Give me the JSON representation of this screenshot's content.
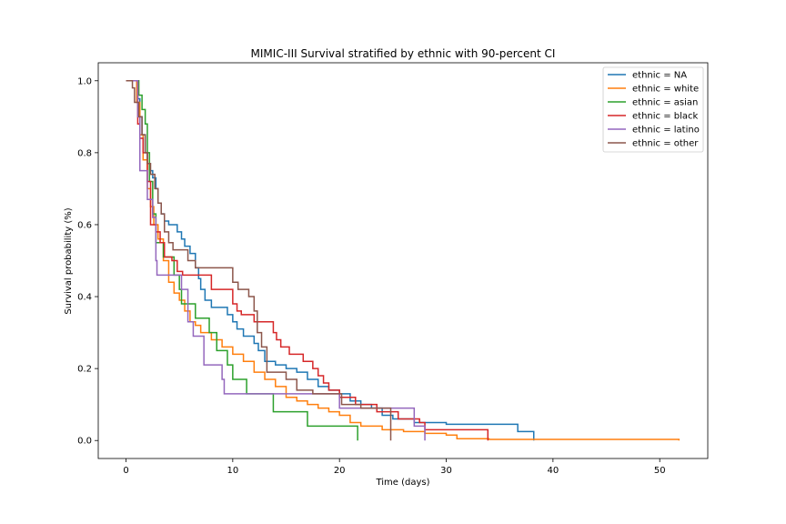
{
  "chart_data": {
    "type": "line",
    "title": "MIMIC-III Survival stratified by ethnic with 90-percent CI",
    "xlabel": "Time (days)",
    "ylabel": "Survival probability (%)",
    "xlim": [
      -2.6,
      54.5
    ],
    "ylim": [
      -0.05,
      1.05
    ],
    "xticks": [
      0,
      10,
      20,
      30,
      40,
      50
    ],
    "yticks": [
      0.0,
      0.2,
      0.4,
      0.6,
      0.8,
      1.0
    ],
    "xtick_labels": [
      "0",
      "10",
      "20",
      "30",
      "40",
      "50"
    ],
    "ytick_labels": [
      "0.0",
      "0.2",
      "0.4",
      "0.6",
      "0.8",
      "1.0"
    ],
    "grid": false,
    "legend_position": "top-right",
    "series": [
      {
        "name": "ethnic = NA",
        "color": "#1f77b4",
        "points": [
          [
            0,
            1.0
          ],
          [
            1.0,
            1.0
          ],
          [
            1.1,
            0.95
          ],
          [
            1.3,
            0.9
          ],
          [
            1.5,
            0.85
          ],
          [
            1.8,
            0.8
          ],
          [
            2.0,
            0.77
          ],
          [
            2.2,
            0.75
          ],
          [
            2.5,
            0.73
          ],
          [
            2.8,
            0.7
          ],
          [
            3.0,
            0.66
          ],
          [
            3.3,
            0.63
          ],
          [
            3.6,
            0.61
          ],
          [
            4.0,
            0.6
          ],
          [
            4.8,
            0.58
          ],
          [
            5.2,
            0.56
          ],
          [
            5.5,
            0.54
          ],
          [
            6.0,
            0.52
          ],
          [
            6.5,
            0.48
          ],
          [
            6.8,
            0.45
          ],
          [
            7.0,
            0.42
          ],
          [
            7.4,
            0.39
          ],
          [
            8.0,
            0.37
          ],
          [
            9.5,
            0.35
          ],
          [
            10.0,
            0.33
          ],
          [
            10.4,
            0.31
          ],
          [
            11.0,
            0.29
          ],
          [
            12.0,
            0.27
          ],
          [
            12.4,
            0.25
          ],
          [
            13.0,
            0.22
          ],
          [
            14.0,
            0.21
          ],
          [
            15.0,
            0.2
          ],
          [
            16.0,
            0.19
          ],
          [
            17.0,
            0.17
          ],
          [
            18.0,
            0.15
          ],
          [
            19.0,
            0.14
          ],
          [
            20.0,
            0.13
          ],
          [
            21.0,
            0.11
          ],
          [
            22.0,
            0.1
          ],
          [
            23.0,
            0.09
          ],
          [
            24.0,
            0.07
          ],
          [
            25.0,
            0.06
          ],
          [
            27.0,
            0.05
          ],
          [
            30.0,
            0.045
          ],
          [
            36.7,
            0.045
          ],
          [
            36.7,
            0.025
          ],
          [
            38.2,
            0.025
          ],
          [
            38.2,
            0.0
          ]
        ]
      },
      {
        "name": "ethnic = white",
        "color": "#ff7f0e",
        "points": [
          [
            0,
            1.0
          ],
          [
            0.8,
            1.0
          ],
          [
            1.0,
            0.94
          ],
          [
            1.3,
            0.85
          ],
          [
            1.6,
            0.78
          ],
          [
            2.0,
            0.7
          ],
          [
            2.3,
            0.65
          ],
          [
            2.6,
            0.6
          ],
          [
            3.0,
            0.56
          ],
          [
            3.5,
            0.5
          ],
          [
            4.0,
            0.44
          ],
          [
            4.5,
            0.41
          ],
          [
            5.0,
            0.39
          ],
          [
            5.5,
            0.36
          ],
          [
            6.0,
            0.33
          ],
          [
            6.5,
            0.32
          ],
          [
            7.0,
            0.3
          ],
          [
            8.0,
            0.28
          ],
          [
            9.0,
            0.26
          ],
          [
            10.0,
            0.24
          ],
          [
            11.0,
            0.22
          ],
          [
            12.0,
            0.19
          ],
          [
            13.0,
            0.17
          ],
          [
            14.0,
            0.15
          ],
          [
            15.0,
            0.12
          ],
          [
            16.0,
            0.11
          ],
          [
            17.0,
            0.1
          ],
          [
            18.0,
            0.09
          ],
          [
            19.0,
            0.08
          ],
          [
            20.0,
            0.07
          ],
          [
            21.0,
            0.05
          ],
          [
            22.0,
            0.04
          ],
          [
            24.0,
            0.03
          ],
          [
            26.0,
            0.025
          ],
          [
            28.0,
            0.02
          ],
          [
            30.0,
            0.015
          ],
          [
            31.0,
            0.005
          ],
          [
            34.0,
            0.003
          ],
          [
            51.8,
            0.003
          ],
          [
            51.8,
            0.0
          ]
        ]
      },
      {
        "name": "ethnic = asian",
        "color": "#2ca02c",
        "points": [
          [
            0,
            1.0
          ],
          [
            1.0,
            1.0
          ],
          [
            1.2,
            0.96
          ],
          [
            1.5,
            0.92
          ],
          [
            1.8,
            0.88
          ],
          [
            2.0,
            0.8
          ],
          [
            2.2,
            0.72
          ],
          [
            2.5,
            0.63
          ],
          [
            2.8,
            0.55
          ],
          [
            3.2,
            0.55
          ],
          [
            3.5,
            0.51
          ],
          [
            4.0,
            0.51
          ],
          [
            4.5,
            0.46
          ],
          [
            5.0,
            0.42
          ],
          [
            5.2,
            0.38
          ],
          [
            6.5,
            0.34
          ],
          [
            7.8,
            0.3
          ],
          [
            8.5,
            0.25
          ],
          [
            9.5,
            0.21
          ],
          [
            10.0,
            0.17
          ],
          [
            11.3,
            0.13
          ],
          [
            13.5,
            0.13
          ],
          [
            13.8,
            0.08
          ],
          [
            17.0,
            0.08
          ],
          [
            17.0,
            0.04
          ],
          [
            21.7,
            0.04
          ],
          [
            21.7,
            0.0
          ]
        ]
      },
      {
        "name": "ethnic = black",
        "color": "#d62728",
        "points": [
          [
            0,
            1.0
          ],
          [
            0.9,
            1.0
          ],
          [
            1.1,
            0.88
          ],
          [
            1.3,
            0.84
          ],
          [
            1.6,
            0.8
          ],
          [
            2.0,
            0.72
          ],
          [
            2.3,
            0.6
          ],
          [
            2.8,
            0.58
          ],
          [
            3.2,
            0.55
          ],
          [
            3.6,
            0.51
          ],
          [
            4.3,
            0.5
          ],
          [
            4.8,
            0.47
          ],
          [
            5.3,
            0.46
          ],
          [
            7.0,
            0.46
          ],
          [
            8.0,
            0.42
          ],
          [
            10.0,
            0.38
          ],
          [
            10.4,
            0.36
          ],
          [
            10.8,
            0.35
          ],
          [
            12.0,
            0.33
          ],
          [
            13.8,
            0.3
          ],
          [
            14.1,
            0.28
          ],
          [
            14.5,
            0.26
          ],
          [
            15.3,
            0.24
          ],
          [
            16.6,
            0.22
          ],
          [
            17.5,
            0.2
          ],
          [
            18.0,
            0.18
          ],
          [
            18.5,
            0.16
          ],
          [
            19.0,
            0.14
          ],
          [
            20.0,
            0.12
          ],
          [
            21.5,
            0.1
          ],
          [
            23.5,
            0.08
          ],
          [
            25.5,
            0.06
          ],
          [
            27.5,
            0.05
          ],
          [
            28.0,
            0.03
          ],
          [
            33.9,
            0.03
          ],
          [
            33.9,
            0.0
          ]
        ]
      },
      {
        "name": "ethnic = latino",
        "color": "#9467bd",
        "points": [
          [
            0,
            1.0
          ],
          [
            1.0,
            1.0
          ],
          [
            1.1,
            0.9
          ],
          [
            1.3,
            0.75
          ],
          [
            1.8,
            0.75
          ],
          [
            2.0,
            0.67
          ],
          [
            2.5,
            0.62
          ],
          [
            2.8,
            0.5
          ],
          [
            2.9,
            0.46
          ],
          [
            5.0,
            0.46
          ],
          [
            5.2,
            0.42
          ],
          [
            5.8,
            0.33
          ],
          [
            6.3,
            0.29
          ],
          [
            7.3,
            0.21
          ],
          [
            9.0,
            0.17
          ],
          [
            9.2,
            0.13
          ],
          [
            19.5,
            0.13
          ],
          [
            20.0,
            0.09
          ],
          [
            27.0,
            0.09
          ],
          [
            27.0,
            0.04
          ],
          [
            28.0,
            0.04
          ],
          [
            28.0,
            0.0
          ]
        ]
      },
      {
        "name": "ethnic = other",
        "color": "#8c564b",
        "points": [
          [
            0,
            1.0
          ],
          [
            0.5,
            1.0
          ],
          [
            0.6,
            0.98
          ],
          [
            0.8,
            0.94
          ],
          [
            1.2,
            0.9
          ],
          [
            1.5,
            0.85
          ],
          [
            1.8,
            0.8
          ],
          [
            2.0,
            0.77
          ],
          [
            2.3,
            0.74
          ],
          [
            2.7,
            0.7
          ],
          [
            3.0,
            0.66
          ],
          [
            3.3,
            0.63
          ],
          [
            3.6,
            0.58
          ],
          [
            4.0,
            0.55
          ],
          [
            4.4,
            0.53
          ],
          [
            5.3,
            0.53
          ],
          [
            5.8,
            0.5
          ],
          [
            6.5,
            0.48
          ],
          [
            9.8,
            0.48
          ],
          [
            10.0,
            0.44
          ],
          [
            10.5,
            0.42
          ],
          [
            11.5,
            0.4
          ],
          [
            12.0,
            0.36
          ],
          [
            12.3,
            0.3
          ],
          [
            12.7,
            0.26
          ],
          [
            13.2,
            0.19
          ],
          [
            15.0,
            0.17
          ],
          [
            16.0,
            0.14
          ],
          [
            17.5,
            0.13
          ],
          [
            19.8,
            0.13
          ],
          [
            20.2,
            0.1
          ],
          [
            22.0,
            0.09
          ],
          [
            24.8,
            0.09
          ],
          [
            24.8,
            0.0
          ]
        ]
      }
    ]
  }
}
